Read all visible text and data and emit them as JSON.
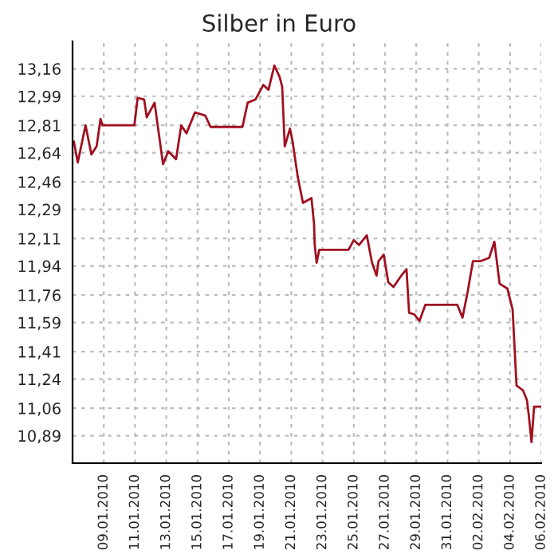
{
  "chart_data": {
    "type": "line",
    "title": "Silber in Euro",
    "x": [
      "2010-01-07T02:00",
      "2010-01-07T08:00",
      "2010-01-07T20:00",
      "2010-01-08T05:00",
      "2010-01-08T13:00",
      "2010-01-08T19:00",
      "2010-01-08T22:00",
      "2010-01-10T23:00",
      "2010-01-11T04:00",
      "2010-01-11T14:00",
      "2010-01-11T18:00",
      "2010-01-12T06:00",
      "2010-01-12T19:00",
      "2010-01-13T03:00",
      "2010-01-13T15:00",
      "2010-01-13T23:00",
      "2010-01-14T07:00",
      "2010-01-14T20:00",
      "2010-01-15T12:00",
      "2010-01-15T20:00",
      "2010-01-17T21:00",
      "2010-01-18T05:00",
      "2010-01-18T17:00",
      "2010-01-19T05:00",
      "2010-01-19T13:00",
      "2010-01-19T22:00",
      "2010-01-20T06:00",
      "2010-01-20T10:00",
      "2010-01-20T14:00",
      "2010-01-20T22:00",
      "2010-01-21T02:00",
      "2010-01-21T10:00",
      "2010-01-21T18:00",
      "2010-01-22T07:00",
      "2010-01-22T11:00",
      "2010-01-22T12:00",
      "2010-01-22T15:00",
      "2010-01-22T19:00",
      "2010-01-24T16:00",
      "2010-01-25T00:00",
      "2010-01-25T08:00",
      "2010-01-25T20:00",
      "2010-01-26T04:00",
      "2010-01-26T11:00",
      "2010-01-26T14:00",
      "2010-01-26T22:00",
      "2010-01-27T05:00",
      "2010-01-27T13:00",
      "2010-01-28T01:00",
      "2010-01-28T09:00",
      "2010-01-28T13:00",
      "2010-01-28T21:00",
      "2010-01-29T05:00",
      "2010-01-29T14:00",
      "2010-01-31T15:00",
      "2010-01-31T23:00",
      "2010-02-01T07:00",
      "2010-02-01T15:00",
      "2010-02-02T03:00",
      "2010-02-02T16:00",
      "2010-02-03T00:00",
      "2010-02-03T08:00",
      "2010-02-03T20:00",
      "2010-02-04T04:00",
      "2010-02-04T10:00",
      "2010-02-04T20:00",
      "2010-02-05T02:00",
      "2010-02-05T05:00",
      "2010-02-05T09:00",
      "2010-02-05T13:00",
      "2010-02-06T00:00"
    ],
    "series": [
      {
        "color": "#a01020",
        "values": [
          12.71,
          12.58,
          12.81,
          12.63,
          12.68,
          12.85,
          12.81,
          12.81,
          12.98,
          12.97,
          12.86,
          12.95,
          12.57,
          12.65,
          12.6,
          12.81,
          12.76,
          12.89,
          12.87,
          12.8,
          12.8,
          12.95,
          12.97,
          13.06,
          13.03,
          13.18,
          13.11,
          13.05,
          12.68,
          12.79,
          12.71,
          12.49,
          12.33,
          12.36,
          12.2,
          12.07,
          11.96,
          12.04,
          12.04,
          12.1,
          12.07,
          12.13,
          11.96,
          11.88,
          11.97,
          12.01,
          11.84,
          11.81,
          11.88,
          11.92,
          11.65,
          11.64,
          11.6,
          11.7,
          11.7,
          11.62,
          11.78,
          11.97,
          11.97,
          11.99,
          12.09,
          11.83,
          11.8,
          11.67,
          11.2,
          11.17,
          11.11,
          11.01,
          10.85,
          11.07,
          11.07
        ]
      }
    ],
    "xlim": [
      "2010-01-07",
      "2010-02-06"
    ],
    "xticks": [
      {
        "value": "2010-01-09",
        "label": "09.01.2010"
      },
      {
        "value": "2010-01-11",
        "label": "11.01.2010"
      },
      {
        "value": "2010-01-13",
        "label": "13.01.2010"
      },
      {
        "value": "2010-01-15",
        "label": "15.01.2010"
      },
      {
        "value": "2010-01-17",
        "label": "17.01.2010"
      },
      {
        "value": "2010-01-19",
        "label": "19.01.2010"
      },
      {
        "value": "2010-01-21",
        "label": "21.01.2010"
      },
      {
        "value": "2010-01-23",
        "label": "23.01.2010"
      },
      {
        "value": "2010-01-25",
        "label": "25.01.2010"
      },
      {
        "value": "2010-01-27",
        "label": "27.01.2010"
      },
      {
        "value": "2010-01-29",
        "label": "29.01.2010"
      },
      {
        "value": "2010-01-31",
        "label": "31.01.2010"
      },
      {
        "value": "2010-02-02",
        "label": "02.02.2010"
      },
      {
        "value": "2010-02-04",
        "label": "04.02.2010"
      },
      {
        "value": "2010-02-06",
        "label": "06.02.2010"
      }
    ],
    "ylim": [
      10.72,
      13.33
    ],
    "yticks": [
      {
        "value": 10.89,
        "label": "10,89"
      },
      {
        "value": 11.06,
        "label": "11,06"
      },
      {
        "value": 11.24,
        "label": "11,24"
      },
      {
        "value": 11.41,
        "label": "11,41"
      },
      {
        "value": 11.59,
        "label": "11,59"
      },
      {
        "value": 11.76,
        "label": "11,76"
      },
      {
        "value": 11.94,
        "label": "11,94"
      },
      {
        "value": 12.11,
        "label": "12,11"
      },
      {
        "value": 12.29,
        "label": "12,29"
      },
      {
        "value": 12.46,
        "label": "12,46"
      },
      {
        "value": 12.64,
        "label": "12,64"
      },
      {
        "value": 12.81,
        "label": "12,81"
      },
      {
        "value": 12.99,
        "label": "12,99"
      },
      {
        "value": 13.16,
        "label": "13,16"
      }
    ],
    "grid": true,
    "line_style": "solid"
  }
}
